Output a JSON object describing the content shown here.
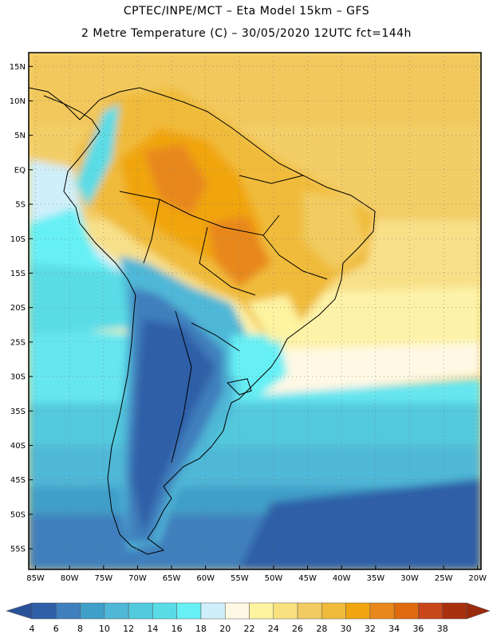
{
  "header": {
    "line1": "CPTEC/INPE/MCT –  Eta Model 15km – GFS",
    "line2": "2 Metre Temperature (C) – 30/05/2020 12UTC fct=144h"
  },
  "axes": {
    "lat_labels": [
      "15N",
      "10N",
      "5N",
      "EQ",
      "5S",
      "10S",
      "15S",
      "20S",
      "25S",
      "30S",
      "35S",
      "40S",
      "45S",
      "50S",
      "55S"
    ],
    "lat_values": [
      15,
      10,
      5,
      0,
      -5,
      -10,
      -15,
      -20,
      -25,
      -30,
      -35,
      -40,
      -45,
      -50,
      -55
    ],
    "lon_labels": [
      "85W",
      "80W",
      "75W",
      "70W",
      "65W",
      "60W",
      "55W",
      "50W",
      "45W",
      "40W",
      "35W",
      "30W",
      "25W",
      "20W"
    ],
    "lon_values": [
      -85,
      -80,
      -75,
      -70,
      -65,
      -60,
      -55,
      -50,
      -45,
      -40,
      -35,
      -30,
      -25,
      -20
    ]
  },
  "colorbar": {
    "labels": [
      "4",
      "6",
      "8",
      "10",
      "12",
      "14",
      "16",
      "18",
      "20",
      "22",
      "24",
      "26",
      "28",
      "30",
      "32",
      "34",
      "36",
      "38"
    ],
    "colors": [
      "#2f5fa7",
      "#3f7fbd",
      "#3f9fc8",
      "#4fb7d7",
      "#52c9dd",
      "#5adce6",
      "#66f0f5",
      "#cfeffa",
      "#fff8e4",
      "#fdf3a0",
      "#f9e17f",
      "#f2cc60",
      "#f0bb3a",
      "#f0a510",
      "#e8881c",
      "#df6a10",
      "#c8461a",
      "#a8300e"
    ],
    "left_extension_color": "#2a5299",
    "right_extension_color": "#9a2a0c"
  },
  "chart_data": {
    "type": "heatmap",
    "title": "CPTEC/INPE/MCT –  Eta Model 15km – GFS",
    "subtitle": "2 Metre Temperature (C) – 30/05/2020 12UTC fct=144h",
    "variable": "2 Metre Temperature",
    "units": "C",
    "xlim": [
      -86,
      -19.5
    ],
    "ylim": [
      -58,
      17
    ],
    "x_ticks": [
      -85,
      -80,
      -75,
      -70,
      -65,
      -60,
      -55,
      -50,
      -45,
      -40,
      -35,
      -30,
      -25,
      -20
    ],
    "y_ticks": [
      15,
      10,
      5,
      0,
      -5,
      -10,
      -15,
      -20,
      -25,
      -30,
      -35,
      -40,
      -45,
      -50,
      -55
    ],
    "color_levels": [
      4,
      6,
      8,
      10,
      12,
      14,
      16,
      18,
      20,
      22,
      24,
      26,
      28,
      30,
      32,
      34,
      36,
      38
    ],
    "grid": true
  }
}
